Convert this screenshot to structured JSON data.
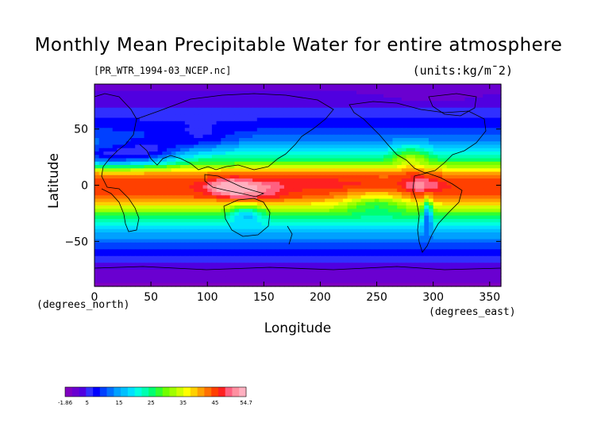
{
  "chart_data": {
    "type": "heatmap",
    "title": "Monthly Mean Precipitable Water for entire atmosphere",
    "source_label": "[PR_WTR_1994-03_NCEP.nc]",
    "units_label": "(units:kg/m¯2)",
    "xlabel": "Longitude",
    "ylabel": "Latitude",
    "x_unit_label": "(degrees_east)",
    "y_unit_label": "(degrees_north)",
    "xlim": [
      0,
      360
    ],
    "ylim": [
      -90,
      90
    ],
    "x_ticks": [
      0,
      50,
      100,
      150,
      200,
      250,
      300,
      350
    ],
    "y_ticks": [
      50,
      0,
      -50
    ],
    "x_tick_labels": [
      "0",
      "50",
      "100",
      "150",
      "200",
      "250",
      "300",
      "350"
    ],
    "y_tick_labels": [
      "50",
      "0",
      "−50"
    ],
    "colorbar": {
      "min": -1.86,
      "max": 54.7,
      "tick_labels": [
        "-1.86",
        "5",
        "15",
        "25",
        "35",
        "45",
        "54.7"
      ],
      "colors": [
        "#8000c0",
        "#6a00d0",
        "#5000e0",
        "#3030ff",
        "#0000ff",
        "#0040ff",
        "#0070ff",
        "#00a0ff",
        "#00c0ff",
        "#00e0ff",
        "#00ffe0",
        "#00ffb0",
        "#00ff70",
        "#30ff30",
        "#70ff00",
        "#a0ff00",
        "#d0ff00",
        "#ffff00",
        "#ffd000",
        "#ffa000",
        "#ff7000",
        "#ff4000",
        "#ff2020",
        "#ff6080",
        "#ff90a0",
        "#ffb0c0"
      ]
    },
    "latitude_profile": [
      {
        "lat": 90,
        "value": 2
      },
      {
        "lat": 75,
        "value": 3
      },
      {
        "lat": 62,
        "value": 6
      },
      {
        "lat": 50,
        "value": 9
      },
      {
        "lat": 40,
        "value": 13
      },
      {
        "lat": 30,
        "value": 20
      },
      {
        "lat": 20,
        "value": 28
      },
      {
        "lat": 10,
        "value": 42
      },
      {
        "lat": 0,
        "value": 46
      },
      {
        "lat": -10,
        "value": 44
      },
      {
        "lat": -20,
        "value": 34
      },
      {
        "lat": -30,
        "value": 24
      },
      {
        "lat": -40,
        "value": 17
      },
      {
        "lat": -50,
        "value": 12
      },
      {
        "lat": -60,
        "value": 8
      },
      {
        "lat": -70,
        "value": 4
      },
      {
        "lat": -80,
        "value": 1
      },
      {
        "lat": -90,
        "value": 0
      }
    ],
    "anomalies": [
      {
        "lon": 120,
        "lat": -2,
        "r_lon": 20,
        "r_lat": 8,
        "value": 10
      },
      {
        "lon": 145,
        "lat": -6,
        "r_lon": 25,
        "r_lat": 10,
        "value": 5
      },
      {
        "lon": 200,
        "lat": 5,
        "r_lon": 60,
        "r_lat": 8,
        "value": 2
      },
      {
        "lon": 250,
        "lat": -15,
        "r_lon": 30,
        "r_lat": 10,
        "value": -10
      },
      {
        "lon": 10,
        "lat": 25,
        "r_lon": 30,
        "r_lat": 10,
        "value": -14
      },
      {
        "lon": 50,
        "lat": 28,
        "r_lon": 30,
        "r_lat": 12,
        "value": -12
      },
      {
        "lon": 280,
        "lat": 25,
        "r_lon": 15,
        "r_lat": 12,
        "value": 8
      },
      {
        "lon": 290,
        "lat": 0,
        "r_lon": 15,
        "r_lat": 8,
        "value": 6
      },
      {
        "lon": 135,
        "lat": -25,
        "r_lon": 15,
        "r_lat": 8,
        "value": -10
      },
      {
        "lon": 295,
        "lat": -25,
        "r_lon": 4,
        "r_lat": 15,
        "value": -15
      },
      {
        "lon": 95,
        "lat": 40,
        "r_lon": 30,
        "r_lat": 12,
        "value": -5
      },
      {
        "lon": 300,
        "lat": 80,
        "r_lon": 30,
        "r_lat": 4,
        "value": -2
      }
    ]
  }
}
